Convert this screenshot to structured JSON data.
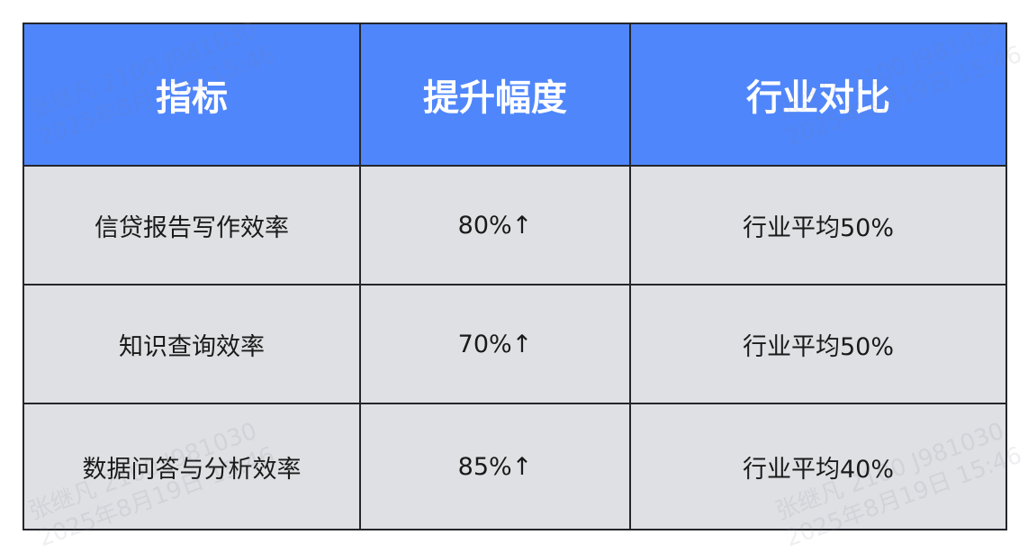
{
  "table": {
    "headers": [
      "指标",
      "提升幅度",
      "行业对比"
    ],
    "rows": [
      [
        "信贷报告写作效率",
        "80%↑",
        "行业平均50%"
      ],
      [
        "知识查询效率",
        "70%↑",
        "行业平均50%"
      ],
      [
        "数据问答与分析效率",
        "85%↑",
        "行业平均40%"
      ]
    ]
  },
  "colors": {
    "header_bg": "#4f86fc",
    "row_bg": "#dfe0e3",
    "border": "#24262b"
  },
  "watermark": {
    "line1": "张继凡 2100 J981030",
    "line2": "2025年8月19日 15:46"
  }
}
